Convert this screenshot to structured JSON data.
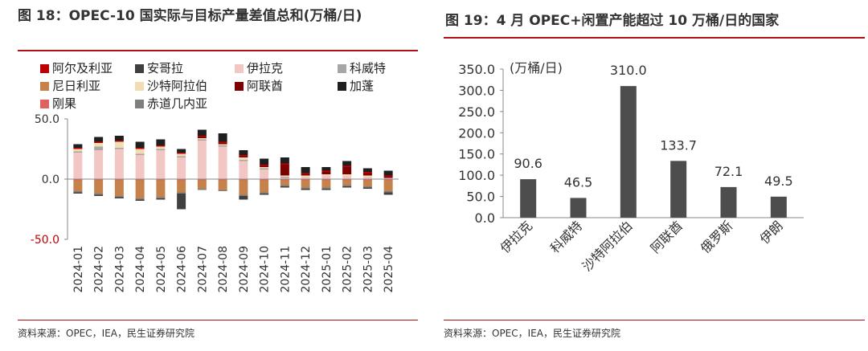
{
  "left": {
    "title": "图 18：OPEC-10 国实际与目标产量差值总和(万桶/日)",
    "source": "资料来源：OPEC，IEA，民生证券研究院",
    "colors": {
      "阿尔及利亚": "#c00000",
      "安哥拉": "#404040",
      "伊拉克": "#f2c7c3",
      "科威特": "#a6a6a6",
      "尼日利亚": "#c5824a",
      "沙特阿拉伯": "#f2dcb4",
      "阿联酋": "#7f0000",
      "加蓬": "#1f1f1f",
      "刚果": "#e06060",
      "赤道几内亚": "#7f7f7f"
    },
    "chart_data": {
      "type": "bar",
      "stacked": true,
      "categories": [
        "2024-01",
        "2024-02",
        "2024-03",
        "2024-04",
        "2024-05",
        "2024-06",
        "2024-07",
        "2024-08",
        "2024-09",
        "2024-10",
        "2024-11",
        "2024-12",
        "2025-01",
        "2025-02",
        "2025-03",
        "2025-04"
      ],
      "ylim": [
        -50,
        50
      ],
      "yticks": [
        "50.0",
        "0.0",
        "-50.0"
      ],
      "ytick_values": [
        50,
        0,
        -50
      ],
      "legend": [
        "阿尔及利亚",
        "安哥拉",
        "伊拉克",
        "科威特",
        "尼日利亚",
        "沙特阿拉伯",
        "阿联酋",
        "加蓬",
        "刚果",
        "赤道几内亚"
      ],
      "series": [
        {
          "name": "伊拉克",
          "values": [
            22,
            24,
            25,
            20,
            24,
            18,
            32,
            27,
            15,
            8,
            1,
            2,
            3,
            3,
            2,
            1
          ]
        },
        {
          "name": "科威特",
          "values": [
            1,
            3,
            1,
            1,
            1,
            1,
            1,
            1,
            1,
            1,
            1,
            0,
            0,
            0,
            0,
            0
          ]
        },
        {
          "name": "沙特阿拉伯",
          "values": [
            2,
            3,
            5,
            4,
            2,
            2,
            1,
            1,
            2,
            1,
            1,
            1,
            1,
            1,
            1,
            0
          ]
        },
        {
          "name": "阿联酋",
          "values": [
            0,
            0,
            0,
            0,
            0,
            0,
            1,
            1,
            1,
            1,
            9,
            1,
            2,
            6,
            2,
            1
          ]
        },
        {
          "name": "阿尔及利亚",
          "values": [
            1,
            1,
            1,
            1,
            1,
            1,
            1,
            1,
            1,
            1,
            1,
            1,
            1,
            1,
            1,
            1
          ]
        },
        {
          "name": "加蓬",
          "values": [
            3,
            4,
            4,
            5,
            5,
            3,
            5,
            7,
            4,
            5,
            5,
            5,
            3,
            4,
            3,
            4
          ]
        },
        {
          "name": "刚果",
          "values": [
            -1,
            -1,
            -1,
            -1,
            -1,
            -1,
            -1,
            -1,
            -1,
            -1,
            -1,
            -1,
            -1,
            -1,
            -1,
            -1
          ]
        },
        {
          "name": "尼日利亚",
          "values": [
            -9,
            -11,
            -13,
            -15,
            -14,
            -10,
            -7,
            -8,
            -12,
            -10,
            -4,
            -6,
            -6,
            -4,
            -5,
            -9
          ]
        },
        {
          "name": "赤道几内亚",
          "values": [
            -1,
            -1,
            -1,
            -1,
            -1,
            -1,
            -1,
            -1,
            -1,
            -1,
            -1,
            -1,
            -1,
            -1,
            -1,
            -1
          ]
        },
        {
          "name": "安哥拉",
          "values": [
            -1,
            -1,
            -1,
            -1,
            -1,
            -13,
            0,
            0,
            -3,
            -1,
            -1,
            -1,
            -1,
            -1,
            -1,
            -2
          ]
        }
      ]
    }
  },
  "right": {
    "title": "图 19：4 月 OPEC+闲置产能超过 10 万桶/日的国家",
    "source": "资料来源：OPEC，IEA，民生证券研究院",
    "colors": {
      "bar": "#4d4d4d"
    },
    "chart_data": {
      "type": "bar",
      "ylabel": "(万桶/日)",
      "categories": [
        "伊拉克",
        "科威特",
        "沙特阿拉伯",
        "阿联酋",
        "俄罗斯",
        "伊朗"
      ],
      "values": [
        90.6,
        46.5,
        310.0,
        133.7,
        72.1,
        49.5
      ],
      "value_labels": [
        "90.6",
        "46.5",
        "310.0",
        "133.7",
        "72.1",
        "49.5"
      ],
      "ylim": [
        0,
        350
      ],
      "yticks": [
        "0.0",
        "50.0",
        "100.0",
        "150.0",
        "200.0",
        "250.0",
        "300.0",
        "350.0"
      ],
      "ytick_values": [
        0,
        50,
        100,
        150,
        200,
        250,
        300,
        350
      ]
    }
  }
}
